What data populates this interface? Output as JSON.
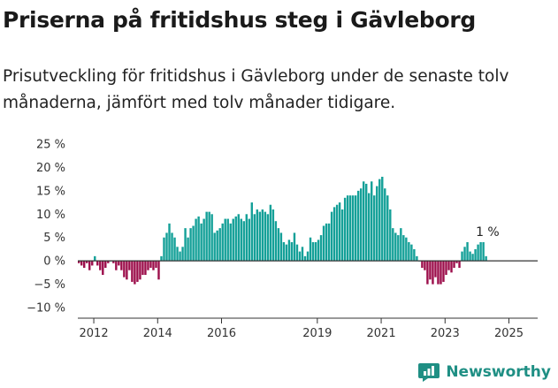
{
  "title": "Priserna på fritidshus steg i Gävleborg",
  "subtitle": "Prisutveckling för fritidshus i Gävleborg under de senaste tolv månaderna, jämfört med tolv månader tidigare.",
  "brand": {
    "name": "Newsworthy",
    "icon": "newsworthy-logo-icon"
  },
  "colors": {
    "positive": "#14a098",
    "negative": "#9c0e4b",
    "axis": "#333333"
  },
  "chart_data": {
    "type": "bar",
    "title": "",
    "xlabel": "",
    "ylabel": "",
    "ylim": [
      -10,
      25
    ],
    "y_ticks": [
      -10,
      -5,
      0,
      5,
      10,
      15,
      20,
      25
    ],
    "y_tick_labels": [
      "−10 %",
      "−5 %",
      "0 %",
      "5 %",
      "10 %",
      "15 %",
      "20 %",
      "25 %"
    ],
    "x_ticks": [
      2012,
      2014,
      2016,
      2019,
      2021,
      2023,
      2025
    ],
    "x_tick_labels": [
      "2012",
      "2014",
      "2016",
      "2019",
      "2021",
      "2023",
      "2025"
    ],
    "annotation": {
      "text": "1 %"
    },
    "series": [
      {
        "start": "2011-07",
        "frequency": "monthly",
        "values": [
          -0.5,
          -1,
          -1.5,
          -0.5,
          -2,
          -1,
          1,
          -1,
          -2,
          -3,
          -1.5,
          -0.5,
          0,
          -0.5,
          -2,
          -1,
          -2,
          -3.5,
          -4,
          -2,
          -4.5,
          -5,
          -4.5,
          -4,
          -3,
          -3,
          -2,
          -1.5,
          -2,
          -1.5,
          -4,
          1,
          5,
          6,
          8,
          6,
          5,
          3,
          2,
          3,
          7,
          5,
          7,
          7.5,
          9,
          9.5,
          8,
          9,
          10.5,
          10.5,
          10,
          6,
          6.5,
          7,
          8,
          9,
          9,
          8,
          9,
          9.5,
          10,
          9,
          8.5,
          10,
          9,
          12.5,
          10,
          11,
          10.5,
          11,
          10.5,
          10,
          12,
          11,
          8.5,
          7,
          6,
          4,
          3.5,
          4.5,
          4,
          6,
          3.5,
          2,
          3,
          1,
          2,
          5,
          4,
          4,
          4.5,
          5.5,
          7.5,
          8,
          8,
          10.5,
          11.5,
          12,
          12.5,
          11,
          13.5,
          14,
          14,
          14,
          14,
          15,
          15.5,
          17,
          16.5,
          14.5,
          17,
          14,
          16,
          17.5,
          18,
          15.5,
          14,
          11,
          7,
          6,
          5.5,
          7,
          5.5,
          5,
          4,
          3.5,
          2.5,
          1,
          0,
          -1.5,
          -2,
          -5,
          -4,
          -5,
          -3.5,
          -5,
          -5,
          -4.5,
          -3,
          -2,
          -2.5,
          -1.5,
          -0.5,
          -1.5,
          2,
          3,
          4,
          2,
          1.5,
          2.5,
          3.5,
          4,
          4,
          1
        ]
      }
    ]
  }
}
